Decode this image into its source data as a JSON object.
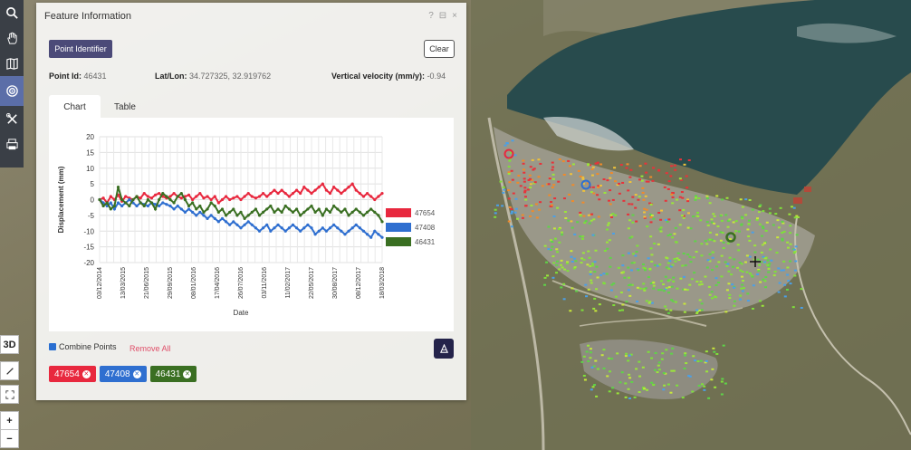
{
  "panel": {
    "title": "Feature Information",
    "ctrl_help": "?",
    "ctrl_window": "⊟",
    "ctrl_close": "×",
    "identifier_button": "Point Identifier",
    "clear_button": "Clear",
    "point_id_label": "Point Id:",
    "point_id_value": "46431",
    "latlon_label": "Lat/Lon:",
    "latlon_value": "34.727325, 32.919762",
    "velocity_label": "Vertical velocity (mm/y):",
    "velocity_value": "-0.94",
    "tabs": [
      {
        "label": "Chart"
      },
      {
        "label": "Table"
      }
    ],
    "combine_label": "Combine Points",
    "remove_all": "Remove All",
    "chips": [
      {
        "label": "47654",
        "color": "#e8283e"
      },
      {
        "label": "47408",
        "color": "#2f6fd0"
      },
      {
        "label": "46431",
        "color": "#3a6f22"
      }
    ]
  },
  "toolbar": {
    "icons": [
      "search-icon",
      "hand-icon",
      "map-icon",
      "target-icon",
      "tools-icon",
      "print-icon"
    ],
    "ctrl_3d": "3D",
    "ctrl_zoom_in": "+",
    "ctrl_zoom_out": "−"
  },
  "chart_data": {
    "type": "line",
    "xlabel": "Date",
    "ylabel": "Displacement (mm)",
    "ylim": [
      -20,
      20
    ],
    "yticks": [
      20,
      15,
      10,
      5,
      0,
      -5,
      -10,
      -15,
      -20
    ],
    "xticks": [
      "03/12/2014",
      "13/03/2015",
      "21/06/2015",
      "29/09/2015",
      "08/01/2016",
      "17/04/2016",
      "26/07/2016",
      "03/11/2016",
      "11/02/2017",
      "22/05/2017",
      "30/08/2017",
      "08/12/2017",
      "18/03/2018"
    ],
    "legend_placement": "right",
    "series": [
      {
        "name": "47654",
        "color": "#e8283e",
        "values": [
          0,
          0.5,
          -1,
          1,
          0,
          1.5,
          -0.5,
          1,
          0.5,
          0,
          1,
          0.5,
          2,
          1,
          0.5,
          1.5,
          2,
          1,
          0.5,
          1,
          2,
          1,
          0.5,
          1,
          1.5,
          0,
          1,
          2,
          0.5,
          1,
          0,
          1,
          -1,
          0,
          1,
          0,
          0.5,
          1,
          0,
          1,
          2,
          1,
          0.5,
          1,
          2,
          1,
          2,
          3,
          2,
          3,
          2,
          1,
          2,
          3,
          2,
          4,
          3,
          2,
          3,
          4,
          5,
          3,
          2,
          4,
          3,
          2,
          3,
          4,
          5,
          3,
          2,
          1,
          2,
          1,
          0,
          1,
          2
        ]
      },
      {
        "name": "47408",
        "color": "#2f6fd0",
        "values": [
          0,
          -1,
          -2,
          -1,
          -3,
          -1,
          -2,
          -1,
          0,
          -1,
          -2,
          -1,
          -1.5,
          -2,
          -1,
          -1.5,
          -2,
          -1,
          -1.5,
          -2,
          -3,
          -2,
          -3,
          -4,
          -3,
          -4,
          -5,
          -4,
          -5,
          -6,
          -5,
          -6,
          -7,
          -6,
          -7,
          -8,
          -7,
          -8,
          -9,
          -8,
          -7,
          -8,
          -9,
          -10,
          -9,
          -8,
          -10,
          -9,
          -8,
          -9,
          -10,
          -9,
          -8,
          -9,
          -10,
          -9,
          -8,
          -9,
          -11,
          -10,
          -9,
          -10,
          -9,
          -8,
          -9,
          -10,
          -11,
          -10,
          -9,
          -8,
          -9,
          -10,
          -11,
          -12,
          -10,
          -11,
          -12
        ]
      },
      {
        "name": "46431",
        "color": "#3a6f22",
        "values": [
          0,
          -2,
          -1,
          -3,
          -2,
          4,
          0,
          -1,
          -2,
          0,
          1,
          -1,
          -2,
          0,
          -1,
          -3,
          0,
          2,
          1,
          0,
          -1,
          1,
          2,
          0,
          -2,
          -1,
          -3,
          -2,
          -4,
          -3,
          -1,
          -2,
          -4,
          -3,
          -5,
          -4,
          -3,
          -5,
          -4,
          -6,
          -5,
          -4,
          -3,
          -5,
          -4,
          -3,
          -2,
          -4,
          -3,
          -4,
          -2,
          -3,
          -4,
          -3,
          -5,
          -4,
          -3,
          -2,
          -4,
          -3,
          -5,
          -3,
          -4,
          -2,
          -3,
          -4,
          -3,
          -5,
          -4,
          -3,
          -4,
          -5,
          -4,
          -3,
          -4,
          -5,
          -7
        ]
      }
    ]
  }
}
